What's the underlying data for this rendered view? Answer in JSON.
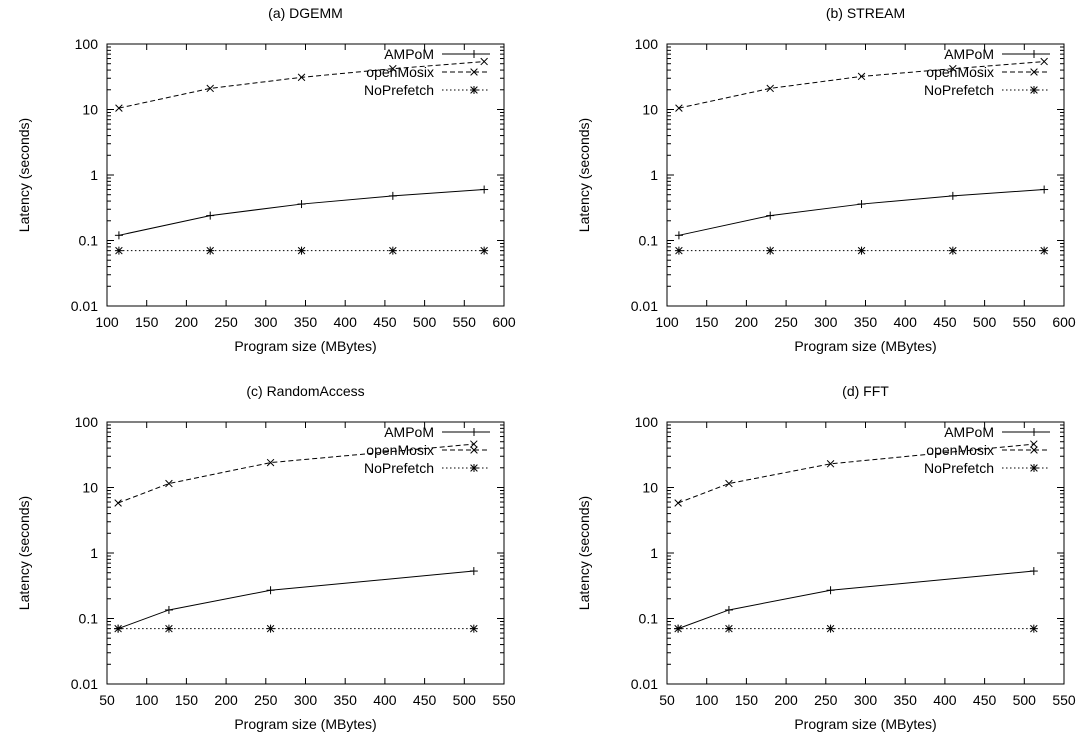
{
  "chart_data": [
    {
      "type": "line",
      "title": "(a) DGEMM",
      "xlabel": "Program size (MBytes)",
      "ylabel": "Latency (seconds)",
      "xlim": [
        100,
        600
      ],
      "xticks": [
        100,
        150,
        200,
        250,
        300,
        350,
        400,
        450,
        500,
        550,
        600
      ],
      "ylim": [
        0.01,
        100
      ],
      "yscale": "log",
      "yticks": [
        0.01,
        0.1,
        1,
        10,
        100
      ],
      "ytick_labels": [
        "0.01",
        "0.1",
        "1",
        "10",
        "100"
      ],
      "legend_position": "top-right",
      "grid": false,
      "x": [
        115,
        230,
        345,
        460,
        575
      ],
      "series": [
        {
          "name": "AMPoM",
          "values": [
            0.12,
            0.24,
            0.36,
            0.48,
            0.6
          ],
          "line": "solid",
          "marker": "plus"
        },
        {
          "name": "openMosix",
          "values": [
            10.5,
            21,
            31,
            42,
            54
          ],
          "line": "dashed",
          "marker": "cross"
        },
        {
          "name": "NoPrefetch",
          "values": [
            0.07,
            0.07,
            0.07,
            0.07,
            0.07
          ],
          "line": "dotted",
          "marker": "star"
        }
      ]
    },
    {
      "type": "line",
      "title": "(b) STREAM",
      "xlabel": "Program size (MBytes)",
      "ylabel": "Latency (seconds)",
      "xlim": [
        100,
        600
      ],
      "xticks": [
        100,
        150,
        200,
        250,
        300,
        350,
        400,
        450,
        500,
        550,
        600
      ],
      "ylim": [
        0.01,
        100
      ],
      "yscale": "log",
      "yticks": [
        0.01,
        0.1,
        1,
        10,
        100
      ],
      "ytick_labels": [
        "0.01",
        "0.1",
        "1",
        "10",
        "100"
      ],
      "legend_position": "top-right",
      "grid": false,
      "x": [
        115,
        230,
        345,
        460,
        575
      ],
      "series": [
        {
          "name": "AMPoM",
          "values": [
            0.12,
            0.24,
            0.36,
            0.48,
            0.6
          ],
          "line": "solid",
          "marker": "plus"
        },
        {
          "name": "openMosix",
          "values": [
            10.5,
            21,
            32,
            42,
            54
          ],
          "line": "dashed",
          "marker": "cross"
        },
        {
          "name": "NoPrefetch",
          "values": [
            0.07,
            0.07,
            0.07,
            0.07,
            0.07
          ],
          "line": "dotted",
          "marker": "star"
        }
      ]
    },
    {
      "type": "line",
      "title": "(c) RandomAccess",
      "xlabel": "Program size (MBytes)",
      "ylabel": "Latency (seconds)",
      "xlim": [
        50,
        550
      ],
      "xticks": [
        50,
        100,
        150,
        200,
        250,
        300,
        350,
        400,
        450,
        500,
        550
      ],
      "ylim": [
        0.01,
        100
      ],
      "yscale": "log",
      "yticks": [
        0.01,
        0.1,
        1,
        10,
        100
      ],
      "ytick_labels": [
        "0.01",
        "0.1",
        "1",
        "10",
        "100"
      ],
      "legend_position": "top-right",
      "grid": false,
      "x": [
        64,
        128,
        256,
        512
      ],
      "series": [
        {
          "name": "AMPoM",
          "values": [
            0.07,
            0.135,
            0.27,
            0.53
          ],
          "line": "solid",
          "marker": "plus"
        },
        {
          "name": "openMosix",
          "values": [
            5.8,
            11.5,
            24,
            46
          ],
          "line": "dashed",
          "marker": "cross"
        },
        {
          "name": "NoPrefetch",
          "values": [
            0.07,
            0.07,
            0.07,
            0.07
          ],
          "line": "dotted",
          "marker": "star"
        }
      ]
    },
    {
      "type": "line",
      "title": "(d) FFT",
      "xlabel": "Program size (MBytes)",
      "ylabel": "Latency (seconds)",
      "xlim": [
        50,
        550
      ],
      "xticks": [
        50,
        100,
        150,
        200,
        250,
        300,
        350,
        400,
        450,
        500,
        550
      ],
      "ylim": [
        0.01,
        100
      ],
      "yscale": "log",
      "yticks": [
        0.01,
        0.1,
        1,
        10,
        100
      ],
      "ytick_labels": [
        "0.01",
        "0.1",
        "1",
        "10",
        "100"
      ],
      "legend_position": "top-right",
      "grid": false,
      "x": [
        64,
        128,
        256,
        512
      ],
      "series": [
        {
          "name": "AMPoM",
          "values": [
            0.07,
            0.135,
            0.27,
            0.53
          ],
          "line": "solid",
          "marker": "plus"
        },
        {
          "name": "openMosix",
          "values": [
            5.8,
            11.5,
            23,
            46
          ],
          "line": "dashed",
          "marker": "cross"
        },
        {
          "name": "NoPrefetch",
          "values": [
            0.07,
            0.07,
            0.07,
            0.07
          ],
          "line": "dotted",
          "marker": "star"
        }
      ]
    }
  ]
}
